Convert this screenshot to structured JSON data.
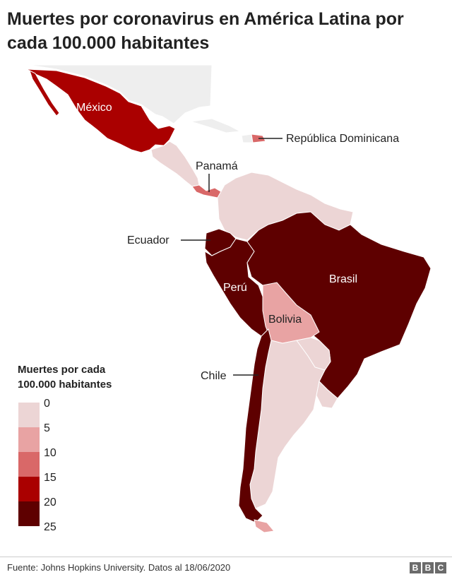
{
  "title": "Muertes por coronavirus en América Latina por cada 100.000 habitantes",
  "legend": {
    "title_line1": "Muertes por cada",
    "title_line2": "100.000 habitantes",
    "ticks": [
      "0",
      "5",
      "10",
      "15",
      "20",
      "25"
    ],
    "colors": [
      "#ecd5d5",
      "#e8a3a3",
      "#d96868",
      "#aa0000",
      "#5e0000"
    ]
  },
  "labels": {
    "mexico": "México",
    "rep_dominicana": "República Dominicana",
    "panama": "Panamá",
    "ecuador": "Ecuador",
    "peru": "Perú",
    "brasil": "Brasil",
    "bolivia": "Bolivia",
    "chile": "Chile"
  },
  "colors": {
    "no_data": "#eeeeee",
    "border": "#ffffff",
    "leader_line": "#222222"
  },
  "footer": {
    "source": "Fuente: Johns Hopkins University. Datos al 18/06/2020",
    "brand_letters": [
      "B",
      "B",
      "C"
    ]
  }
}
